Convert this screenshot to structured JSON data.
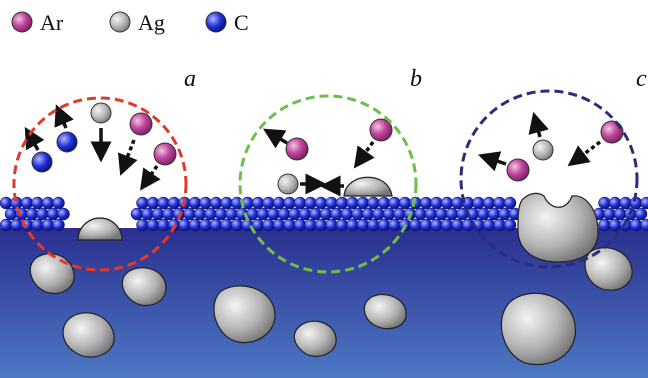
{
  "legend": [
    {
      "label": "Ar"
    },
    {
      "label": "Ag"
    },
    {
      "label": "C"
    }
  ],
  "panels": [
    {
      "label": "a"
    },
    {
      "label": "b"
    },
    {
      "label": "c"
    }
  ]
}
